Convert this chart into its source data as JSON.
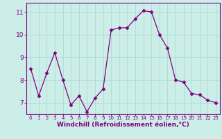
{
  "x": [
    0,
    1,
    2,
    3,
    4,
    5,
    6,
    7,
    8,
    9,
    10,
    11,
    12,
    13,
    14,
    15,
    16,
    17,
    18,
    19,
    20,
    21,
    22,
    23
  ],
  "y": [
    8.5,
    7.3,
    8.3,
    9.2,
    8.0,
    6.9,
    7.3,
    6.6,
    7.2,
    7.6,
    10.2,
    10.3,
    10.3,
    10.7,
    11.05,
    11.0,
    10.0,
    9.4,
    8.0,
    7.9,
    7.4,
    7.35,
    7.1,
    7.0
  ],
  "line_color": "#800080",
  "marker": "D",
  "marker_size": 2.5,
  "bg_color": "#cceee8",
  "grid_color": "#b0d8d0",
  "xlabel": "Windchill (Refroidissement éolien,°C)",
  "xlabel_color": "#800080",
  "tick_color": "#800080",
  "spine_color": "#800080",
  "ylim": [
    6.5,
    11.4
  ],
  "xlim": [
    -0.5,
    23.5
  ],
  "yticks": [
    7,
    8,
    9,
    10,
    11
  ],
  "xticks": [
    0,
    1,
    2,
    3,
    4,
    5,
    6,
    7,
    8,
    9,
    10,
    11,
    12,
    13,
    14,
    15,
    16,
    17,
    18,
    19,
    20,
    21,
    22,
    23
  ],
  "xtick_fontsize": 5.0,
  "ytick_fontsize": 6.5,
  "xlabel_fontsize": 6.5
}
